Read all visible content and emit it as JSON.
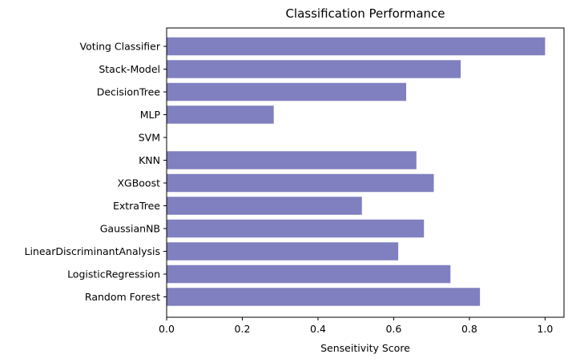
{
  "chart_data": {
    "type": "bar",
    "orientation": "horizontal",
    "title": "Classification Performance",
    "xlabel": "Senseitivity Score",
    "ylabel": "",
    "xlim": [
      0,
      1.05
    ],
    "xticks": [
      0.0,
      0.2,
      0.4,
      0.6,
      0.8,
      1.0
    ],
    "xtick_labels": [
      "0.0",
      "0.2",
      "0.4",
      "0.6",
      "0.8",
      "1.0"
    ],
    "categories": [
      "Voting Classifier",
      "Stack-Model",
      "DecisionTree",
      "MLP",
      "SVM",
      "KNN",
      "XGBoost",
      "ExtraTree",
      "GaussianNB",
      "LinearDiscriminantAnalysis",
      "LogisticRegression",
      "Random Forest"
    ],
    "values": [
      1.0,
      0.777,
      0.633,
      0.283,
      0.0,
      0.66,
      0.706,
      0.516,
      0.68,
      0.612,
      0.75,
      0.828
    ],
    "bar_color": "#8080c0",
    "grid": false,
    "legend": "none"
  }
}
